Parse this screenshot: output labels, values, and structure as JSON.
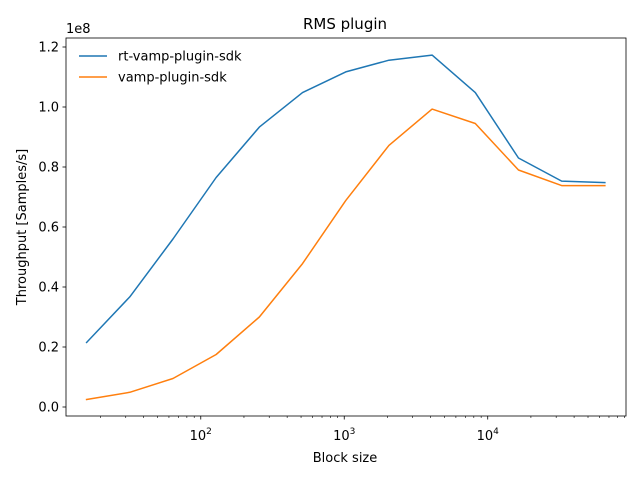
{
  "chart_data": {
    "type": "line",
    "title": "RMS plugin",
    "xlabel": "Block size",
    "ylabel": "Throughput [Samples/s]",
    "x_scale": "log",
    "xlim": [
      11.5,
      92000
    ],
    "ylim": [
      -3000000,
      123000000
    ],
    "y_offset_label": "1e8",
    "y_ticks": [
      0,
      20000000,
      40000000,
      60000000,
      80000000,
      100000000,
      120000000
    ],
    "y_tick_labels": [
      "0.0",
      "0.2",
      "0.4",
      "0.6",
      "0.8",
      "1.0",
      "1.2"
    ],
    "x_ticks": [
      100,
      1000,
      10000
    ],
    "x_tick_bases": [
      "10",
      "10",
      "10"
    ],
    "x_tick_exponents": [
      "2",
      "3",
      "4"
    ],
    "legend_position": "upper-left",
    "grid": false,
    "x": [
      16,
      32,
      64,
      128,
      256,
      512,
      1024,
      2048,
      4096,
      8192,
      16384,
      32768,
      65536
    ],
    "series": [
      {
        "name": "rt-vamp-plugin-sdk",
        "color": "#1f77b4",
        "values": [
          21500000,
          36700000,
          56000000,
          76500000,
          93300000,
          104800000,
          111700000,
          115600000,
          117300000,
          104800000,
          83000000,
          75300000,
          74800000
        ]
      },
      {
        "name": "vamp-plugin-sdk",
        "color": "#ff7f0e",
        "values": [
          2500000,
          4900000,
          9500000,
          17500000,
          30000000,
          47800000,
          68800000,
          87200000,
          99300000,
          94500000,
          79000000,
          73800000,
          73800000
        ]
      }
    ]
  }
}
